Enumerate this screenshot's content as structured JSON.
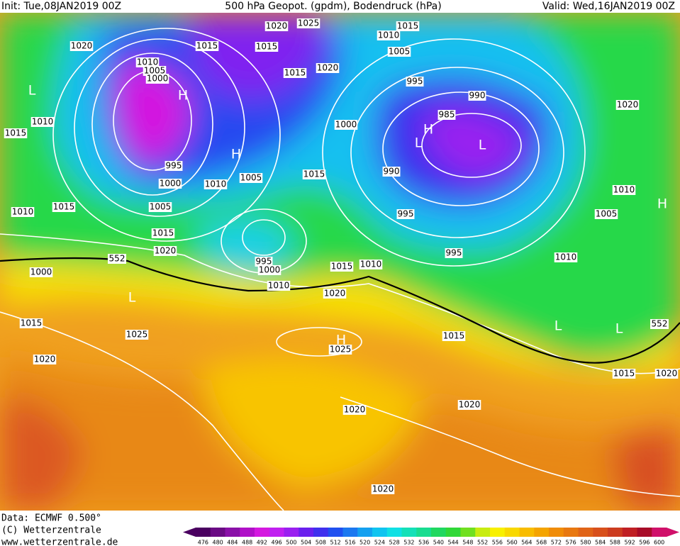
{
  "header": {
    "init": "Init: Tue,08JAN2019 00Z",
    "title": "500 hPa Geopot. (gpdm), Bodendruck (hPa)",
    "valid": "Valid: Wed,16JAN2019 00Z"
  },
  "footer": {
    "data": "Data: ECMWF  0.500°",
    "copyright": "(C) Wetterzentrale",
    "url": "www.wetterzentrale.de"
  },
  "isobar_labels": [
    1020,
    1020,
    1025,
    1015,
    1015,
    1015,
    1020,
    1015,
    1010,
    1005,
    995,
    990,
    985,
    990,
    995,
    995,
    1000,
    1010,
    1005,
    1000,
    995,
    1000,
    1010,
    1015,
    1010,
    1005,
    1015,
    1010,
    1015,
    1005,
    1015,
    1020,
    995,
    1000,
    1015,
    1010,
    1010,
    1020,
    1000,
    1015,
    1025,
    1025,
    1015,
    1020,
    1020,
    1020,
    1020,
    1020,
    1010,
    1005,
    1010,
    1015,
    1020
  ],
  "geopotential_labels": [
    552,
    552
  ],
  "pressure_centers": [
    "L",
    "H",
    "H",
    "L",
    "H",
    "H",
    "L",
    "L",
    "H",
    "L",
    "L"
  ],
  "colorbar": {
    "values": [
      476,
      480,
      484,
      488,
      492,
      496,
      500,
      504,
      508,
      512,
      516,
      520,
      524,
      528,
      532,
      536,
      540,
      544,
      548,
      552,
      556,
      560,
      564,
      568,
      572,
      576,
      580,
      584,
      588,
      592,
      596,
      600
    ],
    "colors": [
      "#4a0060",
      "#6a0a84",
      "#8a10a8",
      "#b010c8",
      "#d418e0",
      "#c020f0",
      "#9a20f0",
      "#6a20ee",
      "#4030ee",
      "#2050f0",
      "#1c78f0",
      "#14a0f0",
      "#10c4f0",
      "#10e0e4",
      "#14e0b8",
      "#18dc90",
      "#20d860",
      "#30d838",
      "#70e020",
      "#c8ec10",
      "#f8f000",
      "#f8d800",
      "#f8bc00",
      "#f4a400",
      "#f08c08",
      "#e87810",
      "#e06418",
      "#d8501c",
      "#cc3c20",
      "#c02024",
      "#a80c28",
      "#d0106a"
    ]
  }
}
